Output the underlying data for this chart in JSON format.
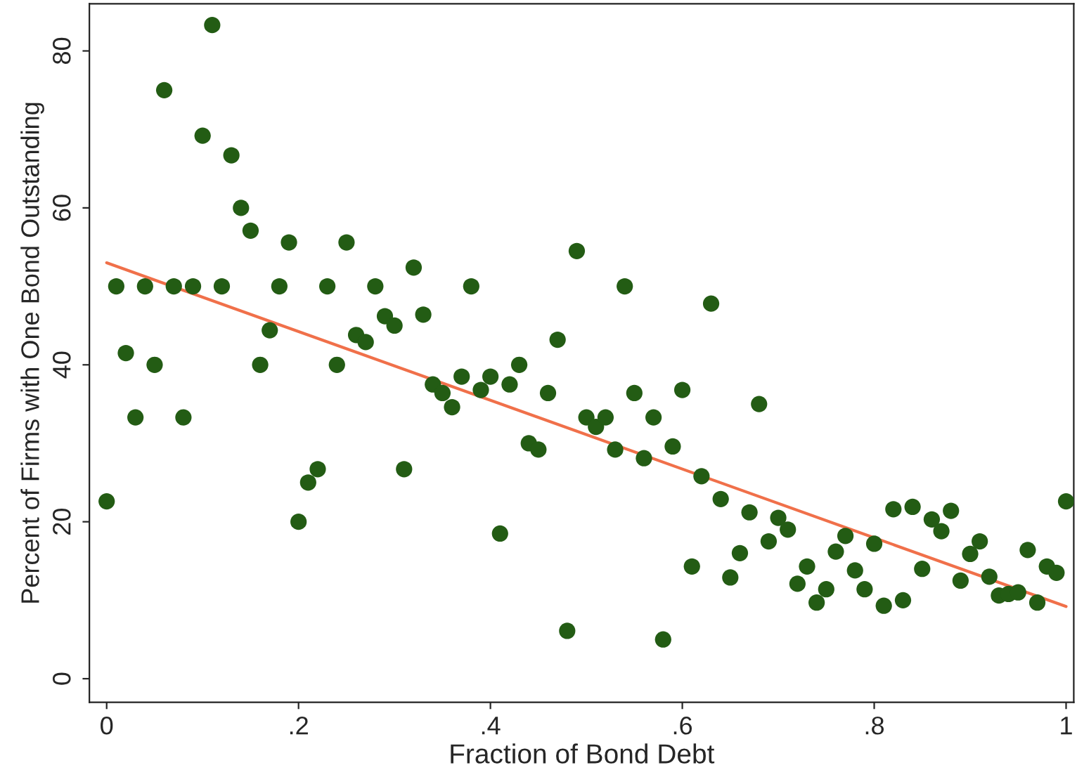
{
  "chart_data": {
    "type": "scatter",
    "xlabel": "Fraction of Bond Debt",
    "ylabel": "Percent of Firms with One Bond Outstanding",
    "xlim": [
      -0.018,
      1.008
    ],
    "ylim": [
      -3,
      86
    ],
    "xticks": [
      {
        "value": 0,
        "label": "0"
      },
      {
        "value": 0.2,
        "label": ".2"
      },
      {
        "value": 0.4,
        "label": ".4"
      },
      {
        "value": 0.6,
        "label": ".6"
      },
      {
        "value": 0.8,
        "label": ".8"
      },
      {
        "value": 1,
        "label": "1"
      }
    ],
    "yticks": [
      0,
      20,
      40,
      60,
      80
    ],
    "grid": false,
    "legend": false,
    "series": [
      {
        "marker": "circle",
        "color": "#235c14",
        "x": [
          0,
          0.01,
          0.02,
          0.03,
          0.04,
          0.05,
          0.06,
          0.07,
          0.08,
          0.09,
          0.1,
          0.11,
          0.12,
          0.13,
          0.14,
          0.15,
          0.16,
          0.17,
          0.18,
          0.19,
          0.2,
          0.21,
          0.22,
          0.23,
          0.24,
          0.25,
          0.26,
          0.27,
          0.28,
          0.29,
          0.3,
          0.31,
          0.32,
          0.33,
          0.34,
          0.35,
          0.36,
          0.37,
          0.38,
          0.39,
          0.4,
          0.41,
          0.42,
          0.43,
          0.44,
          0.45,
          0.46,
          0.47,
          0.48,
          0.49,
          0.5,
          0.51,
          0.52,
          0.53,
          0.54,
          0.55,
          0.56,
          0.57,
          0.58,
          0.59,
          0.6,
          0.61,
          0.62,
          0.63,
          0.64,
          0.65,
          0.66,
          0.67,
          0.68,
          0.69,
          0.7,
          0.71,
          0.72,
          0.73,
          0.74,
          0.75,
          0.76,
          0.77,
          0.78,
          0.79,
          0.8,
          0.81,
          0.82,
          0.83,
          0.84,
          0.85,
          0.86,
          0.87,
          0.88,
          0.89,
          0.9,
          0.91,
          0.92,
          0.93,
          0.94,
          0.95,
          0.96,
          0.97,
          0.98,
          0.99,
          1
        ],
        "values": [
          22.6,
          50,
          41.5,
          33.3,
          50,
          40,
          75,
          50,
          33.3,
          50,
          69.2,
          83.3,
          50,
          66.7,
          60,
          57.1,
          40,
          44.4,
          50,
          55.6,
          20,
          25,
          26.7,
          50,
          40,
          55.6,
          43.8,
          42.9,
          50,
          46.2,
          45,
          26.7,
          52.4,
          46.4,
          37.5,
          36.4,
          34.6,
          38.5,
          50,
          36.8,
          38.5,
          18.5,
          37.5,
          40,
          30,
          29.2,
          36.4,
          43.2,
          6.1,
          54.5,
          33.3,
          32.1,
          33.3,
          29.2,
          50,
          36.4,
          28.1,
          33.3,
          5,
          29.6,
          36.8,
          14.3,
          25.8,
          47.8,
          22.9,
          12.9,
          16,
          21.2,
          35,
          17.5,
          20.5,
          19,
          12.1,
          14.3,
          9.7,
          11.4,
          16.2,
          18.2,
          13.8,
          11.4,
          17.2,
          9.3,
          21.6,
          10,
          21.9,
          14,
          20.3,
          18.8,
          21.4,
          12.5,
          15.9,
          17.5,
          13,
          10.6,
          10.8,
          11,
          16.4,
          9.7,
          14.3,
          13.5,
          22.6
        ]
      },
      {
        "type": "line",
        "color": "#f0704a",
        "x": [
          0,
          1
        ],
        "values": [
          53,
          9.2
        ]
      }
    ]
  }
}
